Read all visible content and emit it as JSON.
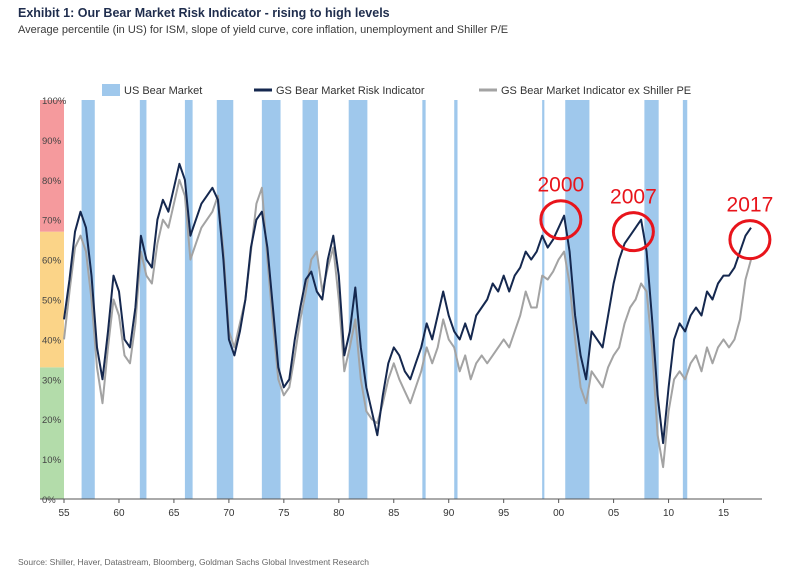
{
  "title": "Exhibit 1: Our Bear Market Risk Indicator - rising to high levels",
  "subtitle": "Average percentile (in US) for ISM, slope of yield curve, core inflation, unemployment and Shiller P/E",
  "source": "Source: Shiller, Haver, Datastream, Bloomberg, Goldman Sachs Global Investment Research",
  "colors": {
    "bear_band": "#9fc8ec",
    "risk_line": "#15284f",
    "ex_pe_line": "#a3a3a3",
    "zone_high": "#f59a9d",
    "zone_mid": "#fbd488",
    "zone_low": "#b3dcaa",
    "annotation": "#e8141b"
  },
  "chart_data": {
    "type": "line",
    "xlim": [
      1955,
      2018.5
    ],
    "ylim": [
      0,
      100
    ],
    "x_ticks": [
      {
        "x": 1955,
        "label": "55"
      },
      {
        "x": 1960,
        "label": "60"
      },
      {
        "x": 1965,
        "label": "65"
      },
      {
        "x": 1970,
        "label": "70"
      },
      {
        "x": 1975,
        "label": "75"
      },
      {
        "x": 1980,
        "label": "80"
      },
      {
        "x": 1985,
        "label": "85"
      },
      {
        "x": 1990,
        "label": "90"
      },
      {
        "x": 1995,
        "label": "95"
      },
      {
        "x": 2000,
        "label": "00"
      },
      {
        "x": 2005,
        "label": "05"
      },
      {
        "x": 2010,
        "label": "10"
      },
      {
        "x": 2015,
        "label": "15"
      }
    ],
    "y_ticks": [
      {
        "y": 0,
        "label": "0%"
      },
      {
        "y": 10,
        "label": "10%"
      },
      {
        "y": 20,
        "label": "20%"
      },
      {
        "y": 30,
        "label": "30%"
      },
      {
        "y": 40,
        "label": "40%"
      },
      {
        "y": 50,
        "label": "50%"
      },
      {
        "y": 60,
        "label": "60%"
      },
      {
        "y": 70,
        "label": "70%"
      },
      {
        "y": 80,
        "label": "80%"
      },
      {
        "y": 90,
        "label": "90%"
      },
      {
        "y": 100,
        "label": "100%"
      }
    ],
    "zones": [
      {
        "from": 0,
        "to": 33,
        "color": "#b3dcaa"
      },
      {
        "from": 33,
        "to": 67,
        "color": "#fbd488"
      },
      {
        "from": 67,
        "to": 100,
        "color": "#f59a9d"
      }
    ],
    "bear_markets": [
      [
        1956.6,
        1957.8
      ],
      [
        1961.9,
        1962.5
      ],
      [
        1966.0,
        1966.7
      ],
      [
        1968.9,
        1970.4
      ],
      [
        1973.0,
        1974.7
      ],
      [
        1976.7,
        1978.1
      ],
      [
        1980.9,
        1982.6
      ],
      [
        1987.6,
        1987.9
      ],
      [
        1990.5,
        1990.8
      ],
      [
        1998.5,
        1998.7
      ],
      [
        2000.6,
        2002.8
      ],
      [
        2007.8,
        2009.1
      ],
      [
        2011.3,
        2011.7
      ]
    ],
    "legend": {
      "placement": "top",
      "entries": [
        {
          "label": "US Bear Market",
          "kind": "band"
        },
        {
          "label": "GS Bear Market Risk Indicator",
          "kind": "line"
        },
        {
          "label": "GS Bear Market Indicator ex Shiller PE",
          "kind": "line"
        }
      ]
    },
    "series": [
      {
        "name": "GS Bear Market Risk Indicator",
        "x": [
          1955.0,
          1955.5,
          1956.0,
          1956.5,
          1957.0,
          1957.5,
          1958.0,
          1958.5,
          1959.0,
          1959.5,
          1960.0,
          1960.5,
          1961.0,
          1961.5,
          1962.0,
          1962.5,
          1963.0,
          1963.5,
          1964.0,
          1964.5,
          1965.0,
          1965.5,
          1966.0,
          1966.5,
          1967.0,
          1967.5,
          1968.0,
          1968.5,
          1969.0,
          1969.5,
          1970.0,
          1970.5,
          1971.0,
          1971.5,
          1972.0,
          1972.5,
          1973.0,
          1973.5,
          1974.0,
          1974.5,
          1975.0,
          1975.5,
          1976.0,
          1976.5,
          1977.0,
          1977.5,
          1978.0,
          1978.5,
          1979.0,
          1979.5,
          1980.0,
          1980.5,
          1981.0,
          1981.5,
          1982.0,
          1982.5,
          1983.0,
          1983.5,
          1984.0,
          1984.5,
          1985.0,
          1985.5,
          1986.0,
          1986.5,
          1987.0,
          1987.5,
          1988.0,
          1988.5,
          1989.0,
          1989.5,
          1990.0,
          1990.5,
          1991.0,
          1991.5,
          1992.0,
          1992.5,
          1993.0,
          1993.5,
          1994.0,
          1994.5,
          1995.0,
          1995.5,
          1996.0,
          1996.5,
          1997.0,
          1997.5,
          1998.0,
          1998.5,
          1999.0,
          1999.5,
          2000.0,
          2000.5,
          2001.0,
          2001.5,
          2002.0,
          2002.5,
          2003.0,
          2003.5,
          2004.0,
          2004.5,
          2005.0,
          2005.5,
          2006.0,
          2006.5,
          2007.0,
          2007.5,
          2008.0,
          2008.5,
          2009.0,
          2009.5,
          2010.0,
          2010.5,
          2011.0,
          2011.5,
          2012.0,
          2012.5,
          2013.0,
          2013.5,
          2014.0,
          2014.5,
          2015.0,
          2015.5,
          2016.0,
          2016.5,
          2017.0,
          2017.5
        ],
        "y": [
          45,
          55,
          67,
          72,
          68,
          56,
          38,
          30,
          42,
          56,
          52,
          40,
          38,
          48,
          66,
          60,
          58,
          70,
          75,
          72,
          78,
          84,
          80,
          66,
          70,
          74,
          76,
          78,
          75,
          60,
          40,
          36,
          42,
          50,
          63,
          70,
          72,
          63,
          48,
          33,
          28,
          30,
          40,
          48,
          55,
          57,
          52,
          50,
          60,
          66,
          56,
          36,
          42,
          53,
          38,
          28,
          22,
          16,
          26,
          34,
          38,
          36,
          32,
          30,
          34,
          38,
          44,
          40,
          46,
          52,
          46,
          42,
          40,
          44,
          40,
          46,
          48,
          50,
          54,
          52,
          56,
          52,
          56,
          58,
          62,
          60,
          62,
          66,
          63,
          65,
          68,
          71,
          62,
          46,
          36,
          30,
          42,
          40,
          38,
          46,
          54,
          60,
          64,
          66,
          68,
          70,
          62,
          45,
          26,
          14,
          28,
          40,
          44,
          42,
          46,
          48,
          46,
          52,
          50,
          54,
          56,
          56,
          58,
          62,
          66,
          68
        ]
      },
      {
        "name": "GS Bear Market Indicator ex Shiller PE",
        "x": [
          1955.0,
          1955.5,
          1956.0,
          1956.5,
          1957.0,
          1957.5,
          1958.0,
          1958.5,
          1959.0,
          1959.5,
          1960.0,
          1960.5,
          1961.0,
          1961.5,
          1962.0,
          1962.5,
          1963.0,
          1963.5,
          1964.0,
          1964.5,
          1965.0,
          1965.5,
          1966.0,
          1966.5,
          1967.0,
          1967.5,
          1968.0,
          1968.5,
          1969.0,
          1969.5,
          1970.0,
          1970.5,
          1971.0,
          1971.5,
          1972.0,
          1972.5,
          1973.0,
          1973.5,
          1974.0,
          1974.5,
          1975.0,
          1975.5,
          1976.0,
          1976.5,
          1977.0,
          1977.5,
          1978.0,
          1978.5,
          1979.0,
          1979.5,
          1980.0,
          1980.5,
          1981.0,
          1981.5,
          1982.0,
          1982.5,
          1983.0,
          1983.5,
          1984.0,
          1984.5,
          1985.0,
          1985.5,
          1986.0,
          1986.5,
          1987.0,
          1987.5,
          1988.0,
          1988.5,
          1989.0,
          1989.5,
          1990.0,
          1990.5,
          1991.0,
          1991.5,
          1992.0,
          1992.5,
          1993.0,
          1993.5,
          1994.0,
          1994.5,
          1995.0,
          1995.5,
          1996.0,
          1996.5,
          1997.0,
          1997.5,
          1998.0,
          1998.5,
          1999.0,
          1999.5,
          2000.0,
          2000.5,
          2001.0,
          2001.5,
          2002.0,
          2002.5,
          2003.0,
          2003.5,
          2004.0,
          2004.5,
          2005.0,
          2005.5,
          2006.0,
          2006.5,
          2007.0,
          2007.5,
          2008.0,
          2008.5,
          2009.0,
          2009.5,
          2010.0,
          2010.5,
          2011.0,
          2011.5,
          2012.0,
          2012.5,
          2013.0,
          2013.5,
          2014.0,
          2014.5,
          2015.0,
          2015.5,
          2016.0,
          2016.5,
          2017.0,
          2017.5
        ],
        "y": [
          40,
          52,
          63,
          66,
          62,
          50,
          33,
          24,
          38,
          50,
          46,
          36,
          34,
          44,
          62,
          56,
          54,
          64,
          70,
          68,
          74,
          80,
          76,
          60,
          64,
          68,
          70,
          72,
          76,
          62,
          42,
          38,
          44,
          50,
          62,
          74,
          78,
          60,
          44,
          30,
          26,
          28,
          36,
          45,
          52,
          60,
          62,
          52,
          58,
          63,
          50,
          32,
          38,
          45,
          30,
          22,
          20,
          19,
          24,
          30,
          34,
          30,
          27,
          24,
          28,
          32,
          38,
          34,
          38,
          45,
          40,
          38,
          32,
          36,
          30,
          34,
          36,
          34,
          36,
          38,
          40,
          38,
          42,
          46,
          52,
          48,
          48,
          56,
          55,
          57,
          60,
          62,
          54,
          40,
          28,
          24,
          32,
          30,
          28,
          33,
          36,
          38,
          44,
          48,
          50,
          54,
          52,
          38,
          16,
          8,
          22,
          30,
          32,
          30,
          34,
          36,
          32,
          38,
          34,
          38,
          40,
          38,
          40,
          45,
          55,
          60
        ]
      }
    ],
    "annotations": [
      {
        "text": "2000",
        "x": 2000.2,
        "y": 70
      },
      {
        "text": "2007",
        "x": 2006.8,
        "y": 67
      },
      {
        "text": "2017",
        "x": 2017.4,
        "y": 65
      }
    ]
  }
}
